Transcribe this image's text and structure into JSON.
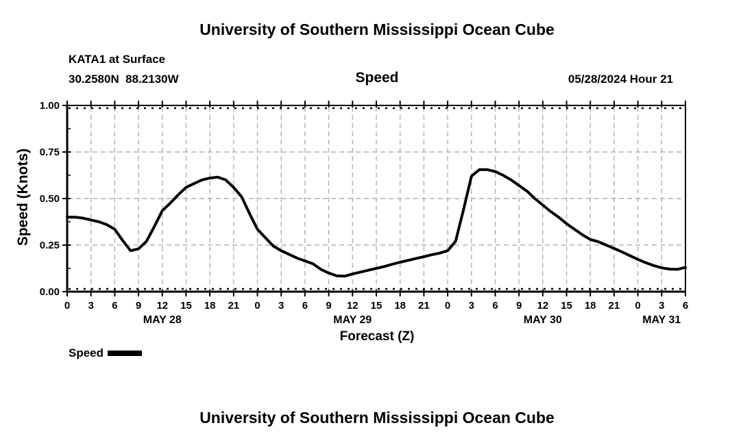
{
  "page": {
    "top_title": "University of Southern Mississippi Ocean Cube",
    "bottom_title": "University of Southern Mississippi Ocean Cube",
    "background_color": "#ffffff",
    "text_color": "#000000"
  },
  "header": {
    "station": "KATA1 at Surface",
    "coordinates": "30.2580N  88.2130W",
    "variable_title": "Speed",
    "run_label": "05/28/2024 Hour 21"
  },
  "legend": {
    "label": "Speed",
    "swatch_color": "#000000"
  },
  "chart_data": {
    "type": "line",
    "title": "Speed",
    "xlabel": "Forecast (Z)",
    "ylabel": "Speed (Knots)",
    "ylim": [
      0.0,
      1.0
    ],
    "x_range_hours": [
      0,
      78
    ],
    "grid": {
      "dashed_color": "#b0b0b0",
      "h_dashed_values": [
        0.25,
        0.5,
        0.75
      ],
      "dotted_values": [
        0.0,
        1.0
      ]
    },
    "yticks": {
      "values": [
        0.0,
        0.25,
        0.5,
        0.75,
        1.0
      ],
      "labels": [
        "0.00",
        "0.25",
        "0.50",
        "0.75",
        "1.00"
      ],
      "minor": [
        0.125,
        0.375,
        0.625,
        0.875
      ]
    },
    "xticks": {
      "hours": [
        0,
        3,
        6,
        9,
        12,
        15,
        18,
        21,
        24,
        27,
        30,
        33,
        36,
        39,
        42,
        45,
        48,
        51,
        54,
        57,
        60,
        63,
        66,
        69,
        72,
        75,
        78
      ],
      "labels": [
        "0",
        "3",
        "6",
        "9",
        "12",
        "15",
        "18",
        "21",
        "0",
        "3",
        "6",
        "9",
        "12",
        "15",
        "18",
        "21",
        "0",
        "3",
        "6",
        "9",
        "12",
        "15",
        "18",
        "21",
        "0",
        "3",
        "6"
      ]
    },
    "date_labels": [
      {
        "label": "MAY 28",
        "hour": 12
      },
      {
        "label": "MAY 29",
        "hour": 36
      },
      {
        "label": "MAY 30",
        "hour": 60
      },
      {
        "label": "MAY 31",
        "hour": 75
      }
    ],
    "series": [
      {
        "name": "Speed",
        "color": "#000000",
        "x_start_hour": 0,
        "x_step_hours": 1,
        "values": [
          0.4,
          0.4,
          0.395,
          0.385,
          0.375,
          0.36,
          0.335,
          0.275,
          0.22,
          0.23,
          0.27,
          0.35,
          0.435,
          0.475,
          0.52,
          0.56,
          0.58,
          0.6,
          0.61,
          0.615,
          0.6,
          0.56,
          0.51,
          0.42,
          0.335,
          0.29,
          0.245,
          0.22,
          0.2,
          0.18,
          0.165,
          0.15,
          0.12,
          0.1,
          0.085,
          0.083,
          0.095,
          0.105,
          0.115,
          0.125,
          0.135,
          0.147,
          0.158,
          0.168,
          0.178,
          0.188,
          0.198,
          0.207,
          0.22,
          0.27,
          0.44,
          0.62,
          0.655,
          0.655,
          0.645,
          0.625,
          0.6,
          0.57,
          0.54,
          0.5,
          0.465,
          0.43,
          0.4,
          0.365,
          0.335,
          0.305,
          0.28,
          0.268,
          0.25,
          0.232,
          0.213,
          0.193,
          0.173,
          0.155,
          0.14,
          0.128,
          0.121,
          0.12,
          0.13
        ]
      }
    ]
  }
}
